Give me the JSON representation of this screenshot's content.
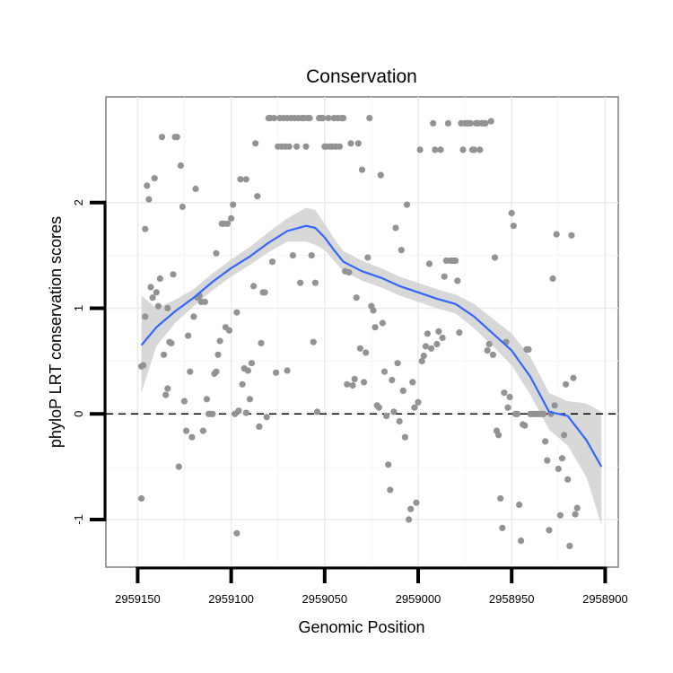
{
  "chart_data": {
    "type": "scatter",
    "title": "Conservation",
    "xlabel": "Genomic Position",
    "ylabel": "phyloP LRT conservation scores",
    "x_reversed": true,
    "xlim": [
      2959167,
      2958893
    ],
    "ylim": [
      -1.45,
      3.0
    ],
    "x_ticks": [
      2959150,
      2959100,
      2959050,
      2959000,
      2958950,
      2958900
    ],
    "x_tick_labels": [
      "2959150",
      "2959100",
      "2959050",
      "2959000",
      "2958950",
      "2958900"
    ],
    "y_ticks": [
      -1,
      0,
      1,
      2
    ],
    "y_tick_labels": [
      "-1",
      "0",
      "1",
      "2"
    ],
    "reference_line": 0,
    "colors": {
      "points": "#939393",
      "smooth": "#3366ff",
      "band": "#d4d4d4",
      "panel_bg": "#ffffff",
      "grid_major": "#ebebeb",
      "grid_minor": "#f5f5f5",
      "border": "#7f7f7f"
    },
    "points": [
      [
        2959148,
        -0.8
      ],
      [
        2959148,
        0.45
      ],
      [
        2959147,
        0.46
      ],
      [
        2959146,
        0.92
      ],
      [
        2959146,
        1.75
      ],
      [
        2959145,
        2.16
      ],
      [
        2959144,
        2.03
      ],
      [
        2959143,
        1.2
      ],
      [
        2959142,
        1.1
      ],
      [
        2959141,
        2.23
      ],
      [
        2959140,
        1.15
      ],
      [
        2959139,
        1.02
      ],
      [
        2959138,
        1.28
      ],
      [
        2959137,
        2.62
      ],
      [
        2959136,
        0.56
      ],
      [
        2959135,
        0.18
      ],
      [
        2959134,
        0.24
      ],
      [
        2959134,
        1.0
      ],
      [
        2959133,
        0.68
      ],
      [
        2959132,
        0.67
      ],
      [
        2959131,
        1.32
      ],
      [
        2959130,
        2.62
      ],
      [
        2959129,
        2.62
      ],
      [
        2959128,
        -0.5
      ],
      [
        2959127,
        2.35
      ],
      [
        2959126,
        1.96
      ],
      [
        2959125,
        0.12
      ],
      [
        2959124,
        -0.16
      ],
      [
        2959123,
        0.74
      ],
      [
        2959122,
        0.4
      ],
      [
        2959121,
        -0.22
      ],
      [
        2959120,
        0.92
      ],
      [
        2959119,
        2.13
      ],
      [
        2959118,
        1.1
      ],
      [
        2959117,
        1.12
      ],
      [
        2959116,
        1.06
      ],
      [
        2959115,
        -0.16
      ],
      [
        2959114,
        1.06
      ],
      [
        2959113,
        0.14
      ],
      [
        2959112,
        0.0
      ],
      [
        2959111,
        0.0
      ],
      [
        2959110,
        0.0
      ],
      [
        2959109,
        0.38
      ],
      [
        2959108,
        0.4
      ],
      [
        2959108,
        1.52
      ],
      [
        2959107,
        0.56
      ],
      [
        2959106,
        0.69
      ],
      [
        2959105,
        1.8
      ],
      [
        2959104,
        1.8
      ],
      [
        2959103,
        0.82
      ],
      [
        2959102,
        1.8
      ],
      [
        2959101,
        0.79
      ],
      [
        2959100,
        1.85
      ],
      [
        2959099,
        1.98
      ],
      [
        2959098,
        0.0
      ],
      [
        2959097,
        0.96
      ],
      [
        2959097,
        -1.13
      ],
      [
        2959096,
        0.03
      ],
      [
        2959095,
        2.22
      ],
      [
        2959094,
        0.28
      ],
      [
        2959093,
        0.43
      ],
      [
        2959092,
        2.22
      ],
      [
        2959092,
        0.01
      ],
      [
        2959091,
        0.41
      ],
      [
        2959090,
        0.14
      ],
      [
        2959089,
        0.48
      ],
      [
        2959088,
        1.21
      ],
      [
        2959087,
        2.56
      ],
      [
        2959086,
        2.06
      ],
      [
        2959085,
        -0.12
      ],
      [
        2959084,
        0.67
      ],
      [
        2959083,
        1.15
      ],
      [
        2959082,
        1.15
      ],
      [
        2959081,
        -0.03
      ],
      [
        2959080,
        2.8
      ],
      [
        2959079,
        2.8
      ],
      [
        2959078,
        1.44
      ],
      [
        2959077,
        2.8
      ],
      [
        2959076,
        0.39
      ],
      [
        2959075,
        2.53
      ],
      [
        2959074,
        2.8
      ],
      [
        2959073,
        2.53
      ],
      [
        2959072,
        2.8
      ],
      [
        2959071,
        2.53
      ],
      [
        2959070,
        2.8
      ],
      [
        2959070,
        0.41
      ],
      [
        2959069,
        2.53
      ],
      [
        2959068,
        2.8
      ],
      [
        2959067,
        1.5
      ],
      [
        2959066,
        2.8
      ],
      [
        2959065,
        2.53
      ],
      [
        2959064,
        2.8
      ],
      [
        2959063,
        1.24
      ],
      [
        2959062,
        2.8
      ],
      [
        2959061,
        2.8
      ],
      [
        2959060,
        2.53
      ],
      [
        2959059,
        2.8
      ],
      [
        2959058,
        2.8
      ],
      [
        2959057,
        1.5
      ],
      [
        2959056,
        0.68
      ],
      [
        2959055,
        1.24
      ],
      [
        2959054,
        0.02
      ],
      [
        2959053,
        2.8
      ],
      [
        2959052,
        2.8
      ],
      [
        2959051,
        2.8
      ],
      [
        2959050,
        2.53
      ],
      [
        2959049,
        2.53
      ],
      [
        2959048,
        2.8
      ],
      [
        2959047,
        2.53
      ],
      [
        2959046,
        2.53
      ],
      [
        2959045,
        2.8
      ],
      [
        2959044,
        2.53
      ],
      [
        2959043,
        2.8
      ],
      [
        2959042,
        2.53
      ],
      [
        2959041,
        2.8
      ],
      [
        2959040,
        2.8
      ],
      [
        2959039,
        1.35
      ],
      [
        2959038,
        0.28
      ],
      [
        2959037,
        1.34
      ],
      [
        2959036,
        2.56
      ],
      [
        2959035,
        0.27
      ],
      [
        2959034,
        0.33
      ],
      [
        2959033,
        1.1
      ],
      [
        2959032,
        2.56
      ],
      [
        2959031,
        0.62
      ],
      [
        2959030,
        2.31
      ],
      [
        2959029,
        0.3
      ],
      [
        2959028,
        0.58
      ],
      [
        2959027,
        1.48
      ],
      [
        2959026,
        2.8
      ],
      [
        2959025,
        1.02
      ],
      [
        2959024,
        0.98
      ],
      [
        2959023,
        0.82
      ],
      [
        2959022,
        0.08
      ],
      [
        2959021,
        0.06
      ],
      [
        2959020,
        2.26
      ],
      [
        2959019,
        0.86
      ],
      [
        2959018,
        0.4
      ],
      [
        2959017,
        -0.02
      ],
      [
        2959016,
        -0.48
      ],
      [
        2959015,
        -0.72
      ],
      [
        2959014,
        0.32
      ],
      [
        2959013,
        0.02
      ],
      [
        2959012,
        1.76
      ],
      [
        2959011,
        0.48
      ],
      [
        2959010,
        -0.07
      ],
      [
        2959009,
        1.55
      ],
      [
        2959008,
        0.22
      ],
      [
        2959007,
        -0.22
      ],
      [
        2959006,
        1.98
      ],
      [
        2959005,
        -1.0
      ],
      [
        2959004,
        -0.9
      ],
      [
        2959003,
        0.3
      ],
      [
        2959002,
        0.06
      ],
      [
        2959001,
        -0.84
      ],
      [
        2959000,
        0.11
      ],
      [
        2958999,
        2.5
      ],
      [
        2958998,
        0.5
      ],
      [
        2958997,
        0.55
      ],
      [
        2958996,
        0.64
      ],
      [
        2958995,
        0.76
      ],
      [
        2958994,
        1.42
      ],
      [
        2958993,
        0.62
      ],
      [
        2958992,
        2.75
      ],
      [
        2958991,
        2.5
      ],
      [
        2958990,
        0.66
      ],
      [
        2958989,
        0.78
      ],
      [
        2958988,
        2.5
      ],
      [
        2958987,
        0.72
      ],
      [
        2958986,
        1.3
      ],
      [
        2958985,
        1.45
      ],
      [
        2958984,
        2.75
      ],
      [
        2958983,
        1.45
      ],
      [
        2958982,
        1.45
      ],
      [
        2958981,
        1.45
      ],
      [
        2958980,
        1.45
      ],
      [
        2958979,
        1.26
      ],
      [
        2958978,
        0.77
      ],
      [
        2958977,
        2.75
      ],
      [
        2958976,
        2.5
      ],
      [
        2958975,
        2.75
      ],
      [
        2958974,
        2.75
      ],
      [
        2958973,
        2.75
      ],
      [
        2958972,
        2.75
      ],
      [
        2958971,
        2.5
      ],
      [
        2958970,
        2.5
      ],
      [
        2958969,
        2.75
      ],
      [
        2958968,
        2.75
      ],
      [
        2958967,
        2.5
      ],
      [
        2958966,
        2.75
      ],
      [
        2958965,
        2.75
      ],
      [
        2958964,
        2.75
      ],
      [
        2958963,
        0.6
      ],
      [
        2958962,
        0.66
      ],
      [
        2958961,
        2.77
      ],
      [
        2958960,
        0.56
      ],
      [
        2958959,
        1.48
      ],
      [
        2958958,
        -0.16
      ],
      [
        2958957,
        -0.2
      ],
      [
        2958956,
        -0.8
      ],
      [
        2958955,
        -1.08
      ],
      [
        2958954,
        0.2
      ],
      [
        2958953,
        0.68
      ],
      [
        2958952,
        0.06
      ],
      [
        2958951,
        0.16
      ],
      [
        2958950,
        1.9
      ],
      [
        2958949,
        1.78
      ],
      [
        2958948,
        0.0
      ],
      [
        2958947,
        0.0
      ],
      [
        2958946,
        -0.86
      ],
      [
        2958945,
        -1.2
      ],
      [
        2958944,
        -0.1
      ],
      [
        2958943,
        -0.11
      ],
      [
        2958942,
        0.61
      ],
      [
        2958941,
        0.61
      ],
      [
        2958940,
        0.0
      ],
      [
        2958939,
        0.0
      ],
      [
        2958938,
        0.0
      ],
      [
        2958937,
        0.0
      ],
      [
        2958936,
        0.0
      ],
      [
        2958935,
        0.0
      ],
      [
        2958934,
        0.0
      ],
      [
        2958933,
        0.0
      ],
      [
        2958932,
        -0.26
      ],
      [
        2958931,
        -0.44
      ],
      [
        2958930,
        -1.1
      ],
      [
        2958929,
        0.0
      ],
      [
        2958928,
        1.28
      ],
      [
        2958927,
        0.08
      ],
      [
        2958926,
        1.7
      ],
      [
        2958925,
        -0.52
      ],
      [
        2958924,
        -0.96
      ],
      [
        2958923,
        -0.42
      ],
      [
        2958922,
        -0.2
      ],
      [
        2958921,
        0.28
      ],
      [
        2958920,
        -0.62
      ],
      [
        2958919,
        -1.25
      ],
      [
        2958918,
        1.69
      ],
      [
        2958917,
        0.34
      ],
      [
        2958916,
        -0.95
      ],
      [
        2958915,
        -0.89
      ]
    ],
    "smooth_line": {
      "x": [
        2959148,
        2959140,
        2959130,
        2959120,
        2959110,
        2959100,
        2959090,
        2959080,
        2959070,
        2959060,
        2959055,
        2959050,
        2959045,
        2959040,
        2959030,
        2959020,
        2959010,
        2959000,
        2958990,
        2958980,
        2958970,
        2958960,
        2958950,
        2958940,
        2958930,
        2958920,
        2958910,
        2958902
      ],
      "y": [
        0.65,
        0.82,
        0.97,
        1.1,
        1.25,
        1.38,
        1.49,
        1.62,
        1.73,
        1.78,
        1.76,
        1.67,
        1.55,
        1.44,
        1.35,
        1.29,
        1.21,
        1.15,
        1.09,
        1.04,
        0.92,
        0.76,
        0.6,
        0.35,
        0.02,
        -0.02,
        -0.25,
        -0.5
      ],
      "lower": [
        0.2,
        0.64,
        0.86,
        1.02,
        1.17,
        1.3,
        1.41,
        1.53,
        1.63,
        1.63,
        1.6,
        1.55,
        1.45,
        1.35,
        1.26,
        1.2,
        1.12,
        1.06,
        1.0,
        0.95,
        0.81,
        0.64,
        0.46,
        0.18,
        -0.15,
        -0.3,
        -0.6,
        -1.05
      ],
      "upper": [
        1.12,
        1.0,
        1.08,
        1.18,
        1.33,
        1.46,
        1.58,
        1.72,
        1.85,
        1.95,
        1.93,
        1.8,
        1.66,
        1.54,
        1.45,
        1.38,
        1.3,
        1.24,
        1.18,
        1.13,
        1.04,
        0.9,
        0.76,
        0.54,
        0.2,
        0.12,
        0.1,
        0.02
      ]
    }
  }
}
